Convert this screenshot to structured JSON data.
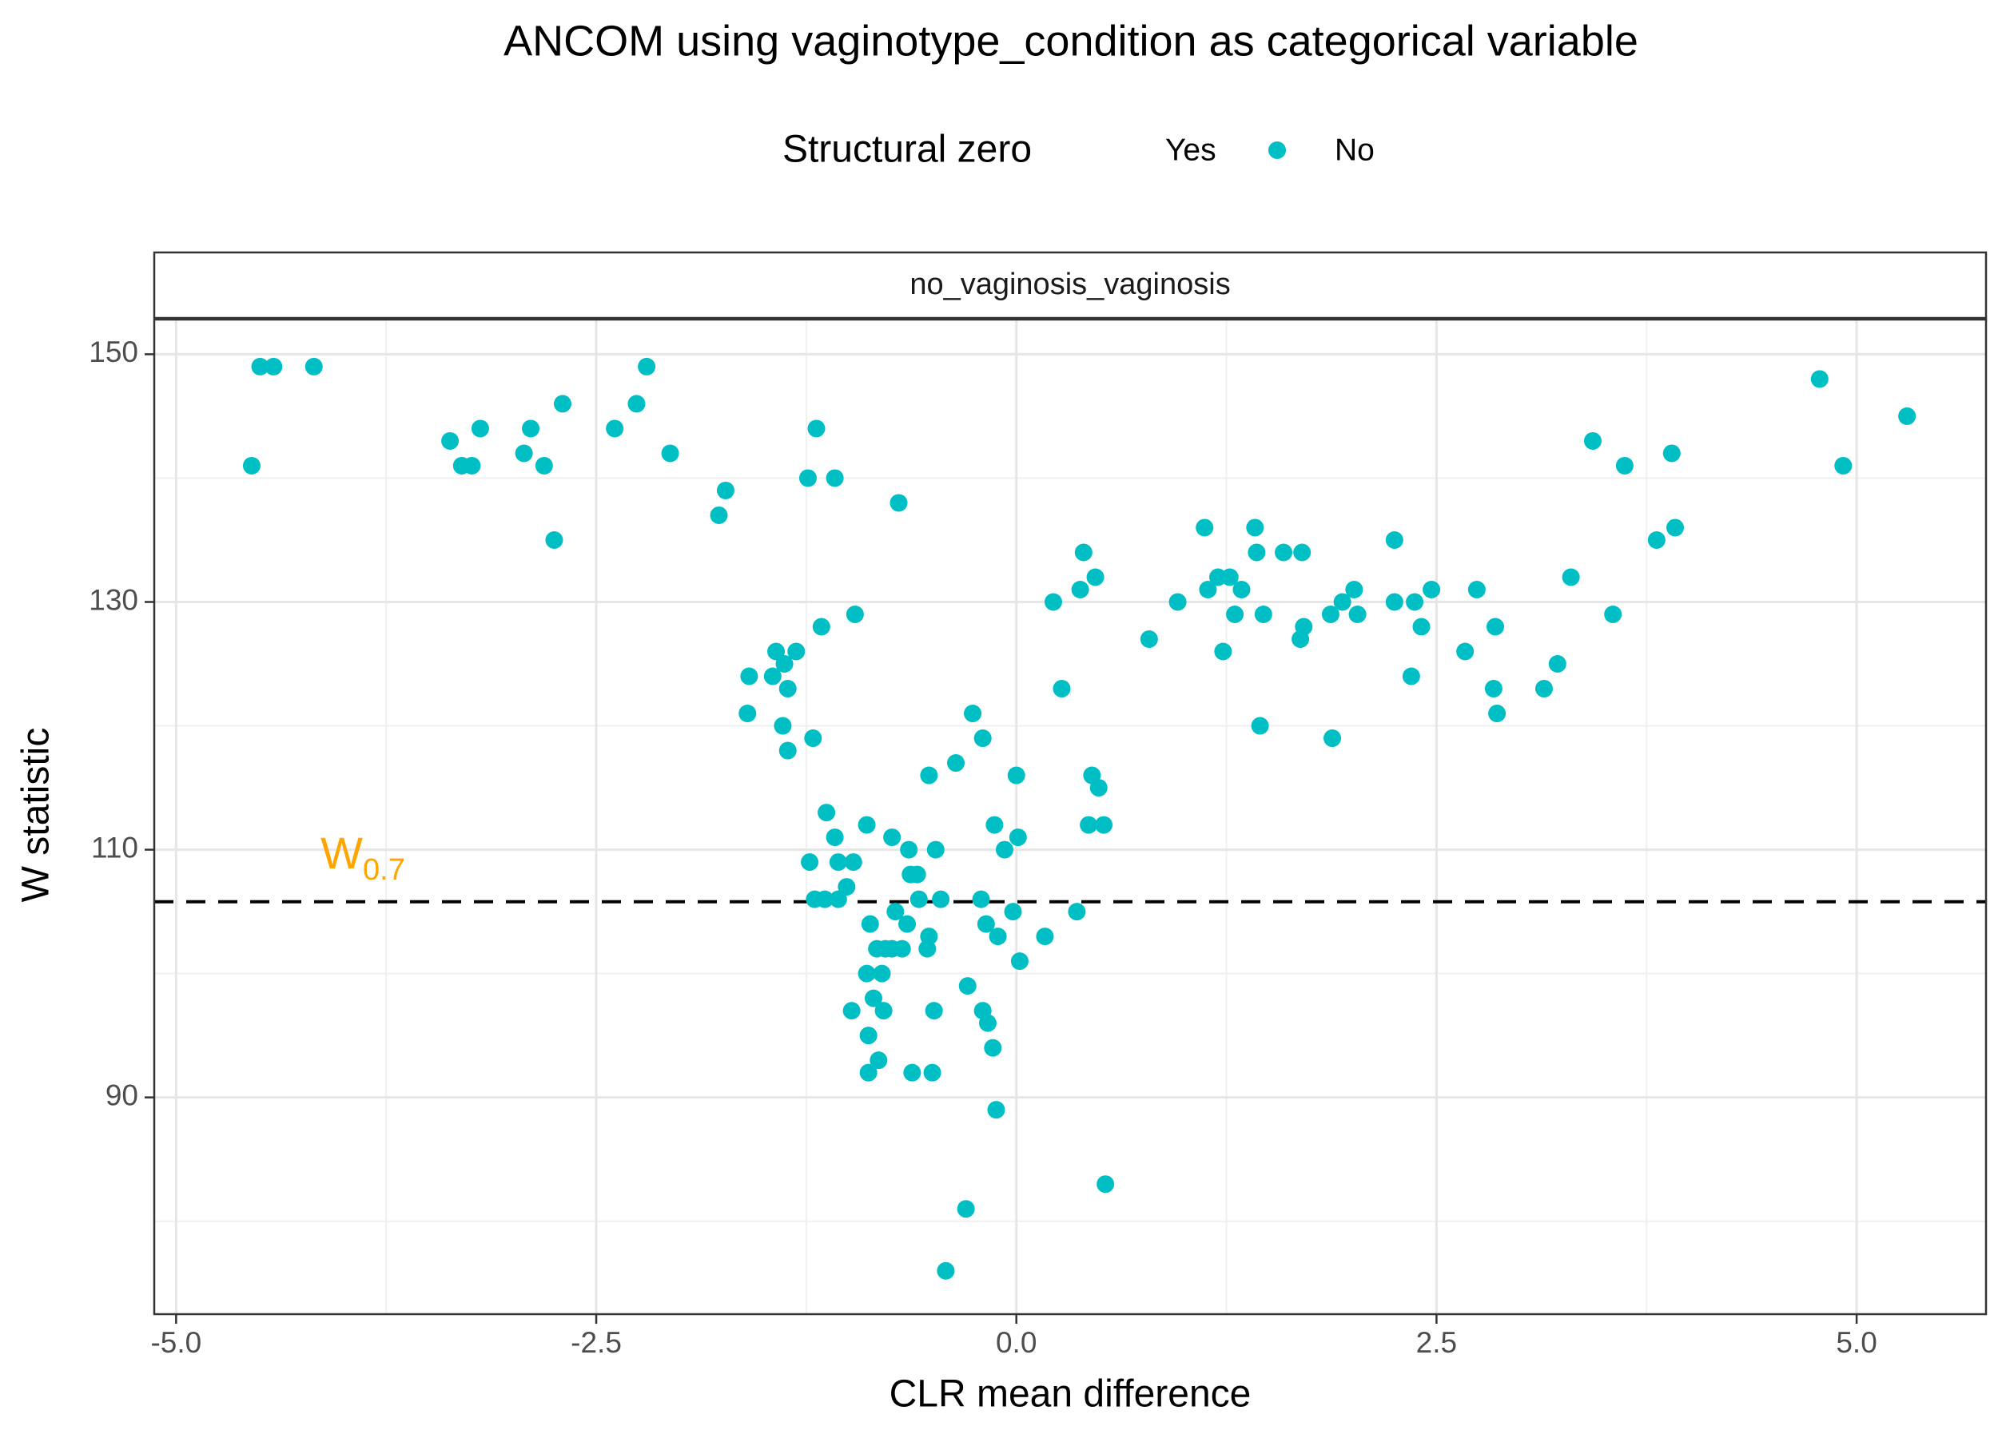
{
  "chart_data": {
    "type": "scatter",
    "title": "ANCOM using vaginotype_condition as categorical variable",
    "facet_label": "no_vaginosis_vaginosis",
    "xlabel": "CLR mean difference",
    "ylabel": "W statistic",
    "xlim": [
      -5.13,
      5.77
    ],
    "ylim": [
      72.5,
      152.8
    ],
    "x_ticks": [
      -5.0,
      -2.5,
      0.0,
      2.5,
      5.0
    ],
    "x_tick_labels": [
      "-5.0",
      "-2.5",
      "0.0",
      "2.5",
      "5.0"
    ],
    "y_ticks": [
      90,
      110,
      130,
      150
    ],
    "y_tick_labels": [
      "90",
      "110",
      "130",
      "150"
    ],
    "y_minor_ticks": [
      80,
      100,
      120,
      140
    ],
    "x_minor_ticks": [
      -3.75,
      -1.25,
      1.25,
      3.75
    ],
    "grid": true,
    "legend": {
      "title": "Structural zero",
      "position": "top",
      "entries": [
        {
          "label": "Yes",
          "color": null
        },
        {
          "label": "No",
          "color": "#00BFC4"
        }
      ]
    },
    "threshold": {
      "label_main": "W",
      "label_sub": "0.7",
      "value": 105.8,
      "label_x": -4.14,
      "label_y": 108.5,
      "color": "#FFA500"
    },
    "series": [
      {
        "name": "No",
        "color": "#00BFC4",
        "points": [
          [
            -4.55,
            141
          ],
          [
            -4.5,
            149
          ],
          [
            -4.42,
            149
          ],
          [
            -4.18,
            149
          ],
          [
            -3.37,
            143
          ],
          [
            -3.3,
            141
          ],
          [
            -3.24,
            141
          ],
          [
            -3.19,
            144
          ],
          [
            -2.93,
            142
          ],
          [
            -2.89,
            144
          ],
          [
            -2.81,
            141
          ],
          [
            -2.75,
            135
          ],
          [
            -2.7,
            146
          ],
          [
            -2.39,
            144
          ],
          [
            -2.26,
            146
          ],
          [
            -2.2,
            149
          ],
          [
            -2.06,
            142
          ],
          [
            -1.77,
            137
          ],
          [
            -1.73,
            139
          ],
          [
            -1.6,
            121
          ],
          [
            -1.59,
            124
          ],
          [
            -1.45,
            124
          ],
          [
            -1.43,
            126
          ],
          [
            -1.39,
            120
          ],
          [
            -1.38,
            125
          ],
          [
            -1.36,
            123
          ],
          [
            -1.36,
            118
          ],
          [
            -1.31,
            126
          ],
          [
            -1.24,
            140
          ],
          [
            -1.23,
            109
          ],
          [
            -1.21,
            119
          ],
          [
            -1.2,
            106
          ],
          [
            -1.19,
            144
          ],
          [
            -1.16,
            128
          ],
          [
            -1.14,
            106
          ],
          [
            -1.13,
            113
          ],
          [
            -1.08,
            140
          ],
          [
            -1.08,
            111
          ],
          [
            -1.06,
            109
          ],
          [
            -1.06,
            106
          ],
          [
            -1.01,
            107
          ],
          [
            -0.98,
            97
          ],
          [
            -0.97,
            109
          ],
          [
            -0.96,
            129
          ],
          [
            -0.89,
            112
          ],
          [
            -0.89,
            100
          ],
          [
            -0.88,
            95
          ],
          [
            -0.88,
            92
          ],
          [
            -0.87,
            104
          ],
          [
            -0.85,
            98
          ],
          [
            -0.83,
            102
          ],
          [
            -0.82,
            93
          ],
          [
            -0.8,
            100
          ],
          [
            -0.79,
            97
          ],
          [
            -0.78,
            102
          ],
          [
            -0.74,
            111
          ],
          [
            -0.74,
            102
          ],
          [
            -0.72,
            105
          ],
          [
            -0.7,
            138
          ],
          [
            -0.68,
            102
          ],
          [
            -0.65,
            104
          ],
          [
            -0.64,
            110
          ],
          [
            -0.63,
            108
          ],
          [
            -0.62,
            92
          ],
          [
            -0.59,
            108
          ],
          [
            -0.58,
            106
          ],
          [
            -0.53,
            102
          ],
          [
            -0.52,
            103
          ],
          [
            -0.52,
            116
          ],
          [
            -0.5,
            92
          ],
          [
            -0.49,
            97
          ],
          [
            -0.48,
            110
          ],
          [
            -0.45,
            106
          ],
          [
            -0.42,
            76
          ],
          [
            -0.36,
            117
          ],
          [
            -0.3,
            81
          ],
          [
            -0.29,
            99
          ],
          [
            -0.26,
            121
          ],
          [
            -0.21,
            106
          ],
          [
            -0.2,
            97
          ],
          [
            -0.2,
            119
          ],
          [
            -0.18,
            104
          ],
          [
            -0.17,
            96
          ],
          [
            -0.14,
            94
          ],
          [
            -0.13,
            112
          ],
          [
            -0.12,
            89
          ],
          [
            -0.11,
            103
          ],
          [
            -0.07,
            110
          ],
          [
            -0.02,
            105
          ],
          [
            0.0,
            116
          ],
          [
            0.01,
            111
          ],
          [
            0.02,
            101
          ],
          [
            0.17,
            103
          ],
          [
            0.22,
            130
          ],
          [
            0.27,
            123
          ],
          [
            0.36,
            105
          ],
          [
            0.38,
            131
          ],
          [
            0.4,
            134
          ],
          [
            0.43,
            112
          ],
          [
            0.45,
            116
          ],
          [
            0.47,
            132
          ],
          [
            0.49,
            115
          ],
          [
            0.52,
            112
          ],
          [
            0.53,
            83
          ],
          [
            0.79,
            127
          ],
          [
            0.96,
            130
          ],
          [
            1.12,
            136
          ],
          [
            1.14,
            131
          ],
          [
            1.2,
            132
          ],
          [
            1.23,
            126
          ],
          [
            1.27,
            132
          ],
          [
            1.3,
            129
          ],
          [
            1.34,
            131
          ],
          [
            1.42,
            136
          ],
          [
            1.43,
            134
          ],
          [
            1.45,
            120
          ],
          [
            1.47,
            129
          ],
          [
            1.59,
            134
          ],
          [
            1.69,
            127
          ],
          [
            1.7,
            134
          ],
          [
            1.71,
            128
          ],
          [
            1.87,
            129
          ],
          [
            1.88,
            119
          ],
          [
            1.94,
            130
          ],
          [
            2.01,
            131
          ],
          [
            2.03,
            129
          ],
          [
            2.25,
            135
          ],
          [
            2.25,
            130
          ],
          [
            2.35,
            124
          ],
          [
            2.37,
            130
          ],
          [
            2.41,
            128
          ],
          [
            2.47,
            131
          ],
          [
            2.67,
            126
          ],
          [
            2.74,
            131
          ],
          [
            2.84,
            123
          ],
          [
            2.85,
            128
          ],
          [
            2.86,
            121
          ],
          [
            3.14,
            123
          ],
          [
            3.22,
            125
          ],
          [
            3.3,
            132
          ],
          [
            3.43,
            143
          ],
          [
            3.55,
            129
          ],
          [
            3.62,
            141
          ],
          [
            3.81,
            135
          ],
          [
            3.9,
            142
          ],
          [
            3.92,
            136
          ],
          [
            4.78,
            148
          ],
          [
            4.92,
            141
          ],
          [
            5.3,
            145
          ]
        ]
      }
    ]
  }
}
